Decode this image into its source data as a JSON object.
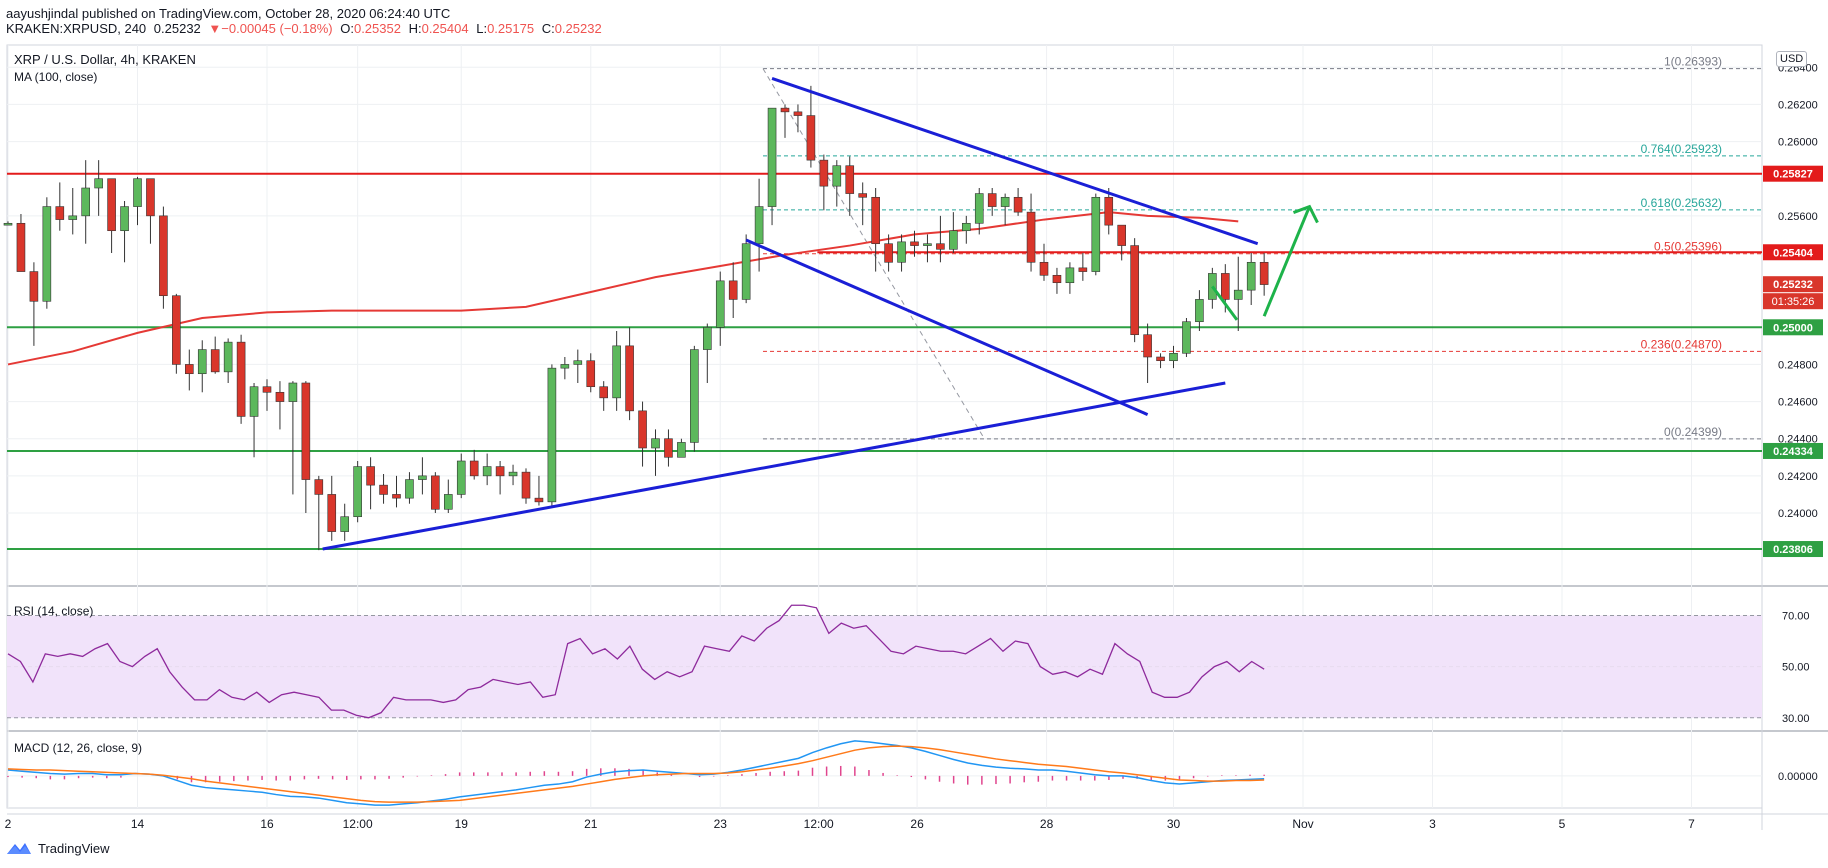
{
  "header": {
    "author": "aayushjindal",
    "published_text": "published on TradingView.com, October 28, 2020 06:24:40 UTC",
    "symbol": "KRAKEN:XRPUSD, 240",
    "last": "0.25232",
    "change": "−0.00045 (−0.18%)",
    "o_label": "O:",
    "o_value": "0.25352",
    "h_label": "H:",
    "h_value": "0.25404",
    "l_label": "L:",
    "l_value": "0.25175",
    "c_label": "C:",
    "c_value": "0.25232",
    "change_arrow": "▼"
  },
  "legend": {
    "title": "XRP / U.S. Dollar, 4h, KRAKEN",
    "ma": "MA (100, close)",
    "rsi": "RSI (14, close)",
    "macd": "MACD (12, 26, close, 9)",
    "currency": "USD"
  },
  "footer": {
    "brand": "TradingView"
  },
  "colors": {
    "up": "#26a69a",
    "candle_up": "#5cb85c",
    "candle_down": "#d9362b",
    "ma": "#e53935",
    "trend": "#1a1fd6",
    "support": "#2ea043",
    "resistance": "#e31b1b",
    "arrow": "#1db34a",
    "rsi": "#8e2a9c",
    "rsi_band": "#f1e3fa",
    "macd": "#2196f3",
    "signal": "#ff7a1a",
    "hist": "#e0458e"
  },
  "chart_data": [
    {
      "type": "candlestick",
      "title": "XRP / U.S. Dollar, 4h, KRAKEN",
      "ylim": [
        0.2365,
        0.2652
      ],
      "y_ticks": [
        "0.26400",
        "0.26200",
        "0.26000",
        "0.25600",
        "0.24800",
        "0.24600",
        "0.24400",
        "0.24200",
        "0.24000"
      ],
      "x_ticks": [
        {
          "label": "2",
          "i": 0
        },
        {
          "label": "14",
          "i": 10
        },
        {
          "label": "16",
          "i": 20
        },
        {
          "label": "12:00",
          "i": 27
        },
        {
          "label": "19",
          "i": 35
        },
        {
          "label": "21",
          "i": 45
        },
        {
          "label": "23",
          "i": 55
        },
        {
          "label": "12:00",
          "i": 62.6
        },
        {
          "label": "26",
          "i": 70.2
        },
        {
          "label": "28",
          "i": 80.2
        },
        {
          "label": "30",
          "i": 90
        },
        {
          "label": "Nov",
          "i": 100
        },
        {
          "label": "3",
          "i": 110
        },
        {
          "label": "5",
          "i": 120
        },
        {
          "label": "7",
          "i": 130
        }
      ],
      "candles": [
        [
          0.2555,
          0.2557,
          0.2556,
          0.2556
        ],
        [
          0.2556,
          0.2561,
          0.253,
          0.253
        ],
        [
          0.253,
          0.2535,
          0.249,
          0.2514
        ],
        [
          0.2514,
          0.257,
          0.251,
          0.2565
        ],
        [
          0.2565,
          0.2578,
          0.2552,
          0.2558
        ],
        [
          0.2558,
          0.2575,
          0.255,
          0.256
        ],
        [
          0.256,
          0.259,
          0.2545,
          0.2575
        ],
        [
          0.2575,
          0.259,
          0.256,
          0.258
        ],
        [
          0.258,
          0.258,
          0.254,
          0.2552
        ],
        [
          0.2552,
          0.2568,
          0.2535,
          0.2565
        ],
        [
          0.2565,
          0.2581,
          0.2555,
          0.258
        ],
        [
          0.258,
          0.258,
          0.2545,
          0.256
        ],
        [
          0.256,
          0.2565,
          0.251,
          0.2517
        ],
        [
          0.2517,
          0.2518,
          0.2475,
          0.248
        ],
        [
          0.248,
          0.2488,
          0.2466,
          0.2475
        ],
        [
          0.2475,
          0.2493,
          0.2465,
          0.2488
        ],
        [
          0.2488,
          0.2495,
          0.2475,
          0.2476
        ],
        [
          0.2476,
          0.2494,
          0.247,
          0.2492
        ],
        [
          0.2492,
          0.2496,
          0.2448,
          0.2452
        ],
        [
          0.2452,
          0.247,
          0.243,
          0.2468
        ],
        [
          0.2468,
          0.2472,
          0.2455,
          0.2465
        ],
        [
          0.2465,
          0.2471,
          0.2445,
          0.246
        ],
        [
          0.246,
          0.2471,
          0.241,
          0.247
        ],
        [
          0.247,
          0.2471,
          0.24,
          0.2418
        ],
        [
          0.2418,
          0.242,
          0.238,
          0.241
        ],
        [
          0.241,
          0.242,
          0.2385,
          0.239
        ],
        [
          0.239,
          0.2405,
          0.2385,
          0.2398
        ],
        [
          0.2398,
          0.2428,
          0.2395,
          0.2425
        ],
        [
          0.2425,
          0.243,
          0.2402,
          0.2415
        ],
        [
          0.2415,
          0.2421,
          0.2405,
          0.241
        ],
        [
          0.241,
          0.242,
          0.2403,
          0.2408
        ],
        [
          0.2408,
          0.2422,
          0.2405,
          0.2418
        ],
        [
          0.2418,
          0.243,
          0.241,
          0.242
        ],
        [
          0.242,
          0.2422,
          0.24,
          0.2402
        ],
        [
          0.2402,
          0.2418,
          0.24,
          0.241
        ],
        [
          0.241,
          0.2432,
          0.2408,
          0.2428
        ],
        [
          0.2428,
          0.2434,
          0.2418,
          0.242
        ],
        [
          0.242,
          0.2432,
          0.2415,
          0.2425
        ],
        [
          0.2425,
          0.2428,
          0.241,
          0.242
        ],
        [
          0.242,
          0.2426,
          0.2415,
          0.2422
        ],
        [
          0.2422,
          0.2424,
          0.2405,
          0.2408
        ],
        [
          0.2408,
          0.242,
          0.2404,
          0.2406
        ],
        [
          0.2406,
          0.248,
          0.2404,
          0.2478
        ],
        [
          0.2478,
          0.2484,
          0.2472,
          0.248
        ],
        [
          0.248,
          0.2488,
          0.247,
          0.2482
        ],
        [
          0.2482,
          0.2486,
          0.2465,
          0.2468
        ],
        [
          0.2468,
          0.2471,
          0.2455,
          0.2462
        ],
        [
          0.2462,
          0.2498,
          0.2455,
          0.249
        ],
        [
          0.249,
          0.25,
          0.245,
          0.2455
        ],
        [
          0.2455,
          0.246,
          0.2425,
          0.2435
        ],
        [
          0.2435,
          0.2445,
          0.242,
          0.244
        ],
        [
          0.244,
          0.2445,
          0.2425,
          0.243
        ],
        [
          0.243,
          0.244,
          0.243,
          0.2438
        ],
        [
          0.2438,
          0.249,
          0.2433,
          0.2488
        ],
        [
          0.2488,
          0.2502,
          0.247,
          0.25
        ],
        [
          0.25,
          0.253,
          0.249,
          0.2525
        ],
        [
          0.2525,
          0.2535,
          0.2505,
          0.2515
        ],
        [
          0.2515,
          0.255,
          0.2513,
          0.2545
        ],
        [
          0.2545,
          0.258,
          0.253,
          0.2565
        ],
        [
          0.2565,
          0.2618,
          0.2555,
          0.2618
        ],
        [
          0.2618,
          0.262,
          0.2602,
          0.2616
        ],
        [
          0.2616,
          0.262,
          0.2605,
          0.2614
        ],
        [
          0.2614,
          0.263,
          0.2586,
          0.259
        ],
        [
          0.259,
          0.2593,
          0.2563,
          0.2576
        ],
        [
          0.2576,
          0.259,
          0.2565,
          0.2587
        ],
        [
          0.2587,
          0.2592,
          0.256,
          0.2572
        ],
        [
          0.2572,
          0.2578,
          0.2555,
          0.257
        ],
        [
          0.257,
          0.2575,
          0.253,
          0.2545
        ],
        [
          0.2545,
          0.255,
          0.253,
          0.2535
        ],
        [
          0.2535,
          0.255,
          0.253,
          0.2546
        ]
      ],
      "candles_2": [
        [
          0.2546,
          0.2552,
          0.2538,
          0.2544
        ],
        [
          0.2544,
          0.255,
          0.2535,
          0.2545
        ],
        [
          0.2545,
          0.256,
          0.2535,
          0.2542
        ],
        [
          0.2542,
          0.2562,
          0.254,
          0.2552
        ],
        [
          0.2552,
          0.256,
          0.2545,
          0.2556
        ],
        [
          0.2556,
          0.2575,
          0.255,
          0.2572
        ],
        [
          0.2572,
          0.2575,
          0.256,
          0.2565
        ],
        [
          0.2565,
          0.2572,
          0.2555,
          0.257
        ],
        [
          0.257,
          0.2575,
          0.256,
          0.2562
        ],
        [
          0.2562,
          0.2572,
          0.253,
          0.2535
        ],
        [
          0.2535,
          0.2545,
          0.2525,
          0.2528
        ],
        [
          0.2528,
          0.2532,
          0.2518,
          0.2524
        ],
        [
          0.2524,
          0.2535,
          0.2518,
          0.2532
        ],
        [
          0.2532,
          0.254,
          0.2525,
          0.253
        ],
        [
          0.253,
          0.2572,
          0.2528,
          0.257
        ],
        [
          0.257,
          0.2575,
          0.255,
          0.2555
        ],
        [
          0.2555,
          0.255,
          0.2536,
          0.2544
        ],
        [
          0.2544,
          0.2548,
          0.2492,
          0.2496
        ],
        [
          0.2496,
          0.2502,
          0.247,
          0.2484
        ],
        [
          0.2484,
          0.2486,
          0.2478,
          0.2482
        ],
        [
          0.2482,
          0.249,
          0.2478,
          0.2486
        ],
        [
          0.2486,
          0.2505,
          0.2484,
          0.2503
        ],
        [
          0.2503,
          0.252,
          0.2498,
          0.2515
        ],
        [
          0.2515,
          0.2532,
          0.251,
          0.2529
        ],
        [
          0.2529,
          0.2534,
          0.2508,
          0.2515
        ],
        [
          0.2515,
          0.2538,
          0.2498,
          0.252
        ],
        [
          0.252,
          0.254,
          0.2512,
          0.2535
        ],
        [
          0.2535,
          0.254,
          0.2517,
          0.2523
        ]
      ],
      "ma_100": [
        [
          0,
          0.248
        ],
        [
          5,
          0.2487
        ],
        [
          10,
          0.2497
        ],
        [
          15,
          0.2505
        ],
        [
          20,
          0.2508
        ],
        [
          25,
          0.2509
        ],
        [
          30,
          0.2509
        ],
        [
          35,
          0.2509
        ],
        [
          40,
          0.2511
        ],
        [
          45,
          0.2519
        ],
        [
          50,
          0.2527
        ],
        [
          55,
          0.2533
        ],
        [
          60,
          0.2539
        ],
        [
          65,
          0.2544
        ],
        [
          70,
          0.255
        ],
        [
          75,
          0.2553
        ],
        [
          80,
          0.2558
        ],
        [
          85,
          0.2562
        ],
        [
          88,
          0.256
        ],
        [
          92,
          0.2559
        ],
        [
          95,
          0.2557
        ]
      ],
      "fib_levels": [
        {
          "ratio": "1",
          "value": 0.26393,
          "label": "1(0.26393)"
        },
        {
          "ratio": "0.764",
          "value": 0.25923,
          "label": "0.764(0.25923)"
        },
        {
          "ratio": "0.618",
          "value": 0.25632,
          "label": "0.618(0.25632)"
        },
        {
          "ratio": "0.5",
          "value": 0.25396,
          "label": "0.5(0.25396)"
        },
        {
          "ratio": "0.236",
          "value": 0.2487,
          "label": "0.236(0.24870)"
        },
        {
          "ratio": "0",
          "value": 0.24399,
          "label": "0(0.24399)"
        }
      ],
      "horizontal_levels": [
        {
          "value": 0.25827,
          "label": "0.25827",
          "kind": "resistance"
        },
        {
          "value": 0.25404,
          "label": "0.25404",
          "kind": "resistance"
        },
        {
          "value": 0.25232,
          "label": "0.25232",
          "kind": "price"
        },
        {
          "value": 0.25,
          "label": "0.25000",
          "kind": "support"
        },
        {
          "value": 0.24334,
          "label": "0.24334",
          "kind": "support"
        },
        {
          "value": 0.23806,
          "label": "0.23806",
          "kind": "support"
        }
      ],
      "countdown": "01:35:26",
      "trendlines": [
        {
          "from": [
            24.3,
            0.23806
          ],
          "to": [
            94,
            0.247
          ]
        },
        {
          "from": [
            59,
            0.2634
          ],
          "to": [
            96.5,
            0.2545
          ]
        },
        {
          "from": [
            57,
            0.2547
          ],
          "to": [
            88,
            0.2453
          ]
        }
      ],
      "projection": [
        {
          "from": [
            93,
            0.2522
          ],
          "to": [
            94.9,
            0.2504
          ]
        },
        {
          "from": [
            97,
            0.2506
          ],
          "to": [
            100.5,
            0.2565
          ]
        }
      ]
    },
    {
      "type": "line",
      "name": "RSI (14, close)",
      "ylim": [
        26,
        78
      ],
      "band": [
        30,
        70
      ],
      "y_ticks": [
        "70.00",
        "50.00",
        "30.00"
      ],
      "values": [
        55,
        52,
        44,
        55,
        54,
        55,
        54,
        57,
        59,
        52,
        50,
        54,
        57,
        48,
        42,
        37,
        37,
        41,
        38,
        37,
        40,
        36,
        39,
        40,
        39,
        38,
        33,
        33,
        31,
        30,
        32,
        38,
        37,
        37,
        37,
        36,
        37,
        41,
        42,
        45,
        44,
        43,
        44,
        38,
        39,
        59,
        61,
        55,
        57,
        53,
        58,
        49,
        45,
        48,
        46,
        48,
        58,
        57,
        56,
        62,
        60,
        65,
        68,
        74,
        74,
        73,
        63,
        67,
        65,
        66,
        61,
        56,
        55,
        58,
        57,
        56,
        56,
        55,
        58,
        61,
        56,
        60,
        59,
        50,
        47,
        48,
        46,
        49,
        47,
        59,
        55,
        52,
        40,
        38,
        38,
        40,
        46,
        50,
        52,
        48,
        52,
        49
      ],
      "x_offset": 0
    },
    {
      "type": "line",
      "name": "MACD (12, 26, close, 9)",
      "ylim": [
        -0.00055,
        0.0007
      ],
      "y_ticks": [
        "0.00000"
      ],
      "macd": [
        0.0001,
        8e-05,
        6e-05,
        4e-05,
        3e-05,
        4e-05,
        4e-05,
        2e-05,
        2e-05,
        4e-05,
        3e-05,
        0.0,
        -8e-05,
        -0.00016,
        -0.0002,
        -0.00022,
        -0.00024,
        -0.00026,
        -0.00028,
        -0.00032,
        -0.00035,
        -0.00036,
        -0.00038,
        -0.00042,
        -0.00046,
        -0.00048,
        -0.0005,
        -0.0005,
        -0.00048,
        -0.00046,
        -0.00043,
        -0.0004,
        -0.00036,
        -0.00033,
        -0.0003,
        -0.00027,
        -0.00024,
        -0.0002,
        -0.00016,
        -0.00014,
        -0.0001,
        -2e-05,
        3e-05,
        7e-05,
        9e-05,
        0.0001,
        8e-05,
        6e-05,
        4e-05,
        2e-05,
        3e-05,
        6e-05,
        0.0001,
        0.00015,
        0.0002,
        0.00025,
        0.0003,
        0.0004,
        0.00048,
        0.00055,
        0.0006,
        0.00058,
        0.00055,
        0.00052,
        0.00048,
        0.00042,
        0.00035,
        0.00028,
        0.00022,
        0.00018,
        0.00015,
        0.00013,
        0.00012,
        0.0001,
        0.0001,
        8e-05,
        5e-05,
        2e-05,
        0.0,
        0.0,
        -3e-05,
        -8e-05,
        -0.00012,
        -0.00014,
        -0.00012,
        -0.0001,
        -8e-05,
        -7e-05,
        -6e-05,
        -5e-05
      ],
      "signal": [
        0.00012,
        0.00011,
        0.0001,
        0.0001,
        9e-05,
        8e-05,
        7e-05,
        6e-05,
        5e-05,
        4e-05,
        3e-05,
        1e-05,
        -2e-05,
        -5e-05,
        -9e-05,
        -0.00012,
        -0.00015,
        -0.00018,
        -0.00021,
        -0.00024,
        -0.00027,
        -0.0003,
        -0.00033,
        -0.00036,
        -0.00039,
        -0.00042,
        -0.00044,
        -0.00045,
        -0.00045,
        -0.00045,
        -0.00044,
        -0.00043,
        -0.00042,
        -0.00039,
        -0.00036,
        -0.00033,
        -0.0003,
        -0.00027,
        -0.00024,
        -0.00021,
        -0.00018,
        -0.00014,
        -0.0001,
        -6e-05,
        -3e-05,
        0.0,
        2e-05,
        3e-05,
        4e-05,
        4e-05,
        4e-05,
        5e-05,
        7e-05,
        0.0001,
        0.00013,
        0.00017,
        0.00021,
        0.00026,
        0.00032,
        0.00038,
        0.00044,
        0.00048,
        0.0005,
        0.00051,
        0.0005,
        0.00048,
        0.00045,
        0.00041,
        0.00037,
        0.00033,
        0.00029,
        0.00026,
        0.00023,
        0.0002,
        0.00018,
        0.00016,
        0.00013,
        0.0001,
        7e-05,
        5e-05,
        2e-05,
        -1e-05,
        -4e-05,
        -7e-05,
        -8e-05,
        -9e-05,
        -9e-05,
        -8e-05,
        -8e-05,
        -7e-05
      ]
    }
  ]
}
